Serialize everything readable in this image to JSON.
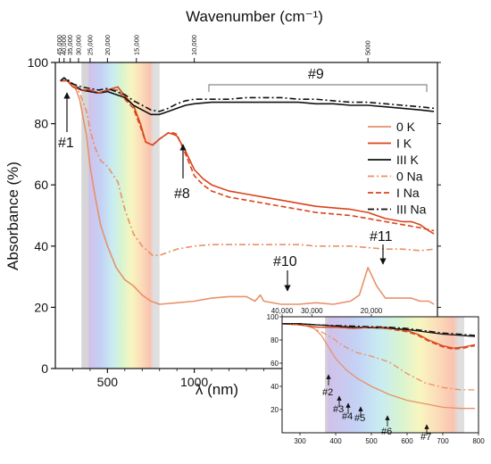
{
  "chart_data": [
    {
      "type": "line",
      "xlabel": "λ (nm)",
      "ylabel": "Absorbance (%)",
      "top_axis_label": "Wavenumber (cm⁻¹)",
      "xlim": [
        200,
        2400
      ],
      "ylim": [
        0,
        100
      ],
      "x_ticks": [
        "500",
        "1000"
      ],
      "y_ticks": [
        "0",
        "20",
        "40",
        "60",
        "80",
        "100"
      ],
      "top_ticks": [
        {
          "label": "45,000",
          "wavenumber": 45000
        },
        {
          "label": "40,000",
          "wavenumber": 40000
        },
        {
          "label": "35,000",
          "wavenumber": 35000
        },
        {
          "label": "30,000",
          "wavenumber": 30000
        },
        {
          "label": "25,000",
          "wavenumber": 25000
        },
        {
          "label": "20,000",
          "wavenumber": 20000
        },
        {
          "label": "15,000",
          "wavenumber": 15000
        },
        {
          "label": "10,000",
          "wavenumber": 10000
        },
        {
          "label": "5000",
          "wavenumber": 5000
        }
      ],
      "visible_band_nm": [
        350,
        800
      ],
      "legend_position": "right",
      "series": [
        {
          "name": "0 K",
          "color": "#e8916a",
          "style": "solid",
          "x": [
            230,
            270,
            300,
            320,
            340,
            360,
            380,
            400,
            430,
            460,
            500,
            550,
            600,
            650,
            700,
            750,
            800,
            900,
            1000,
            1100,
            1200,
            1300,
            1350,
            1380,
            1400,
            1500,
            1600,
            1700,
            1800,
            1900,
            1950,
            2000,
            2050,
            2100,
            2150,
            2200,
            2250,
            2300,
            2350,
            2380
          ],
          "y": [
            94,
            94,
            93,
            91,
            88,
            82,
            76,
            66,
            56,
            47,
            40,
            33,
            29,
            27,
            24,
            22,
            21,
            21.5,
            22,
            23,
            23.5,
            23.5,
            22,
            24,
            22,
            21,
            21,
            21.5,
            21,
            22,
            24,
            33,
            27,
            23,
            23,
            23,
            23,
            22,
            22,
            21
          ]
        },
        {
          "name": "I K",
          "color": "#d9441c",
          "style": "solid",
          "x": [
            230,
            270,
            300,
            350,
            400,
            450,
            500,
            560,
            600,
            650,
            690,
            720,
            760,
            800,
            850,
            880,
            900,
            950,
            1000,
            1050,
            1100,
            1200,
            1300,
            1400,
            1500,
            1600,
            1700,
            1800,
            1900,
            2000,
            2100,
            2200,
            2250,
            2300,
            2350,
            2380
          ],
          "y": [
            94,
            94,
            92,
            91,
            91,
            90,
            91,
            92,
            89,
            86,
            80,
            74,
            73,
            75,
            77,
            76.5,
            76,
            71,
            65,
            62,
            60,
            58,
            57,
            56,
            55,
            54,
            53,
            52.5,
            52,
            51,
            49,
            48,
            48,
            47,
            45,
            44
          ]
        },
        {
          "name": "III K",
          "color": "#111111",
          "style": "solid",
          "x": [
            230,
            250,
            280,
            300,
            350,
            400,
            450,
            500,
            550,
            600,
            650,
            700,
            750,
            800,
            850,
            900,
            950,
            1000,
            1100,
            1200,
            1300,
            1400,
            1500,
            1600,
            1700,
            1800,
            1900,
            2000,
            2100,
            2200,
            2300,
            2380
          ],
          "y": [
            94,
            95,
            93.5,
            93,
            91,
            90.5,
            90,
            90.5,
            89.5,
            88.5,
            86,
            84.5,
            83,
            83,
            84,
            85,
            86,
            86.5,
            87,
            87,
            87,
            87,
            87,
            87,
            86.5,
            86.5,
            86,
            86,
            85.5,
            85,
            84.5,
            84
          ]
        },
        {
          "name": "0 Na",
          "color": "#e8916a",
          "style": "dashdot",
          "x": [
            230,
            270,
            300,
            320,
            340,
            360,
            380,
            400,
            430,
            460,
            500,
            560,
            600,
            650,
            700,
            760,
            800,
            850,
            900,
            1000,
            1100,
            1200,
            1300,
            1400,
            1500,
            1600,
            1700,
            1800,
            1900,
            2000,
            2100,
            2200,
            2300,
            2380
          ],
          "y": [
            94,
            94,
            93,
            92,
            90,
            87,
            84,
            78,
            72,
            68,
            66,
            61,
            52,
            44,
            40,
            37,
            37,
            38,
            39,
            40,
            40.5,
            40.5,
            40.5,
            40.5,
            40.5,
            40.5,
            40,
            40,
            40,
            39.5,
            39,
            39,
            38.5,
            39
          ]
        },
        {
          "name": "I Na",
          "color": "#d9441c",
          "style": "dashed",
          "x": [
            230,
            270,
            300,
            350,
            400,
            450,
            500,
            560,
            600,
            650,
            690,
            720,
            760,
            800,
            850,
            880,
            900,
            950,
            1000,
            1050,
            1100,
            1200,
            1300,
            1400,
            1500,
            1600,
            1700,
            1800,
            1900,
            2000,
            2100,
            2200,
            2300,
            2380
          ],
          "y": [
            94,
            94,
            92,
            91,
            91,
            90,
            91,
            91,
            88,
            85,
            79,
            74,
            73,
            75,
            77,
            77,
            76.5,
            70,
            63,
            60,
            58,
            56,
            55,
            54,
            53,
            52,
            51,
            50.5,
            50,
            49,
            48,
            47,
            46,
            45
          ]
        },
        {
          "name": "III Na",
          "color": "#111111",
          "style": "dashdot",
          "x": [
            230,
            250,
            280,
            300,
            350,
            400,
            450,
            500,
            550,
            600,
            650,
            700,
            750,
            800,
            850,
            900,
            950,
            1000,
            1100,
            1200,
            1300,
            1400,
            1500,
            1600,
            1700,
            1800,
            1900,
            2000,
            2100,
            2200,
            2300,
            2380
          ],
          "y": [
            94,
            95,
            94,
            93,
            92,
            91.5,
            91,
            91.5,
            90.5,
            89.5,
            87.5,
            86,
            84.5,
            84,
            85,
            86.5,
            87.5,
            88,
            88,
            88,
            88.5,
            88.5,
            88.5,
            88,
            88,
            87.5,
            87,
            87,
            86.5,
            86,
            85.5,
            85
          ]
        }
      ],
      "annotations": [
        {
          "label": "#1",
          "x_nm": 232,
          "y_pct": 82
        },
        {
          "label": "#8",
          "x_nm": 880,
          "y_pct": 63
        },
        {
          "label": "#9",
          "x_nm": 1700,
          "y_pct": 98
        },
        {
          "label": "#10",
          "x_nm": 1380,
          "y_pct": 33
        },
        {
          "label": "#11",
          "x_nm": 2010,
          "y_pct": 43
        }
      ]
    },
    {
      "type": "line",
      "name": "inset",
      "xlim": [
        250,
        800
      ],
      "ylim": [
        0,
        100
      ],
      "x_ticks": [
        "300",
        "400",
        "500",
        "600",
        "700",
        "800"
      ],
      "y_ticks": [
        "20",
        "40",
        "60",
        "80",
        "100"
      ],
      "top_ticks": [
        {
          "label": "40,000",
          "wavenumber": 40000
        },
        {
          "label": "30,000",
          "wavenumber": 30000
        },
        {
          "label": "20,000",
          "wavenumber": 20000
        }
      ],
      "visible_band_nm": [
        370,
        760
      ],
      "series": [
        {
          "name": "0 K",
          "color": "#e8916a",
          "style": "solid",
          "x": [
            250,
            280,
            300,
            320,
            340,
            360,
            380,
            400,
            430,
            460,
            500,
            550,
            600,
            650,
            700,
            750,
            790
          ],
          "y": [
            94,
            94,
            93,
            92,
            90,
            84,
            74,
            64,
            54,
            47,
            40,
            33,
            28,
            25,
            22,
            21,
            21
          ]
        },
        {
          "name": "I K",
          "color": "#d9441c",
          "style": "solid",
          "x": [
            250,
            300,
            350,
            400,
            450,
            500,
            540,
            580,
            600,
            630,
            660,
            700,
            730,
            760,
            790
          ],
          "y": [
            94,
            93,
            91,
            91,
            90,
            91,
            91,
            89,
            88,
            85,
            80,
            75,
            73,
            74,
            76
          ]
        },
        {
          "name": "III K",
          "color": "#111111",
          "style": "solid",
          "x": [
            250,
            300,
            350,
            400,
            450,
            500,
            550,
            600,
            650,
            700,
            750,
            790
          ],
          "y": [
            94,
            94,
            93,
            92,
            91,
            90.5,
            90,
            89,
            87,
            85,
            84,
            83
          ]
        },
        {
          "name": "0 Na",
          "color": "#e8916a",
          "style": "dashdot",
          "x": [
            250,
            300,
            330,
            360,
            390,
            420,
            460,
            500,
            550,
            600,
            650,
            700,
            750,
            790
          ],
          "y": [
            94,
            93,
            91,
            87,
            82,
            75,
            69,
            66,
            61,
            51,
            43,
            39,
            37,
            37
          ]
        },
        {
          "name": "I Na",
          "color": "#d9441c",
          "style": "dashed",
          "x": [
            250,
            300,
            350,
            400,
            450,
            500,
            540,
            580,
            600,
            630,
            660,
            700,
            730,
            760,
            790
          ],
          "y": [
            94,
            93,
            91,
            91,
            90,
            91,
            90,
            88,
            87,
            84,
            79,
            74,
            72,
            73,
            75
          ]
        },
        {
          "name": "III Na",
          "color": "#111111",
          "style": "dashdot",
          "x": [
            250,
            300,
            350,
            400,
            450,
            500,
            550,
            600,
            650,
            700,
            750,
            790
          ],
          "y": [
            94,
            94,
            93,
            92.5,
            92,
            91.5,
            91,
            90,
            88,
            86,
            85,
            84
          ]
        }
      ],
      "annotations": [
        {
          "label": "#2",
          "x_nm": 380
        },
        {
          "label": "#3",
          "x_nm": 410
        },
        {
          "label": "#4",
          "x_nm": 435
        },
        {
          "label": "#5",
          "x_nm": 470
        },
        {
          "label": "#6",
          "x_nm": 545
        },
        {
          "label": "#7",
          "x_nm": 655
        }
      ]
    }
  ]
}
